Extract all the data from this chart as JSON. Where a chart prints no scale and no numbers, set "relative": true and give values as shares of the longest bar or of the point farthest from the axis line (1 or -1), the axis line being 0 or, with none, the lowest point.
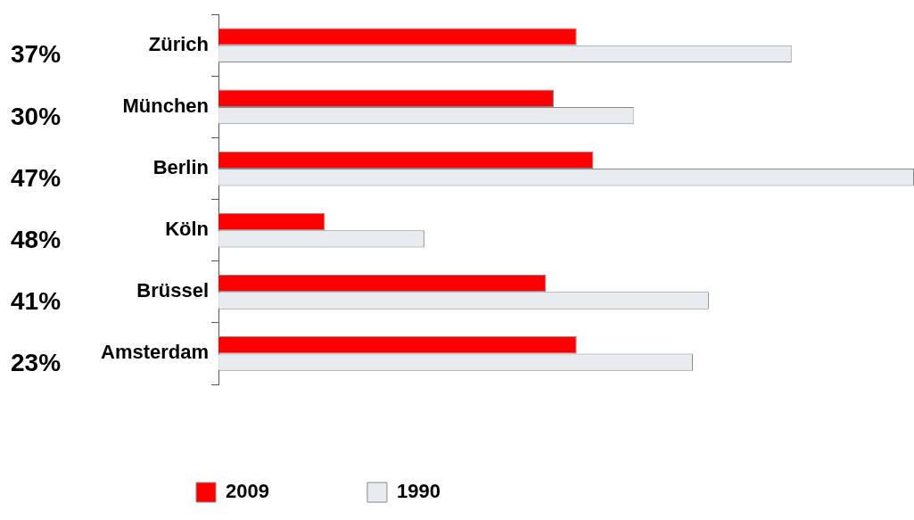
{
  "chart_data": {
    "type": "bar",
    "orientation": "horizontal",
    "relative": true,
    "categories": [
      "Zürich",
      "München",
      "Berlin",
      "Köln",
      "Brüssel",
      "Amsterdam"
    ],
    "series": [
      {
        "name": "2009",
        "color": "#ff0000",
        "values": [
          0.515,
          0.482,
          0.539,
          0.153,
          0.471,
          0.515
        ]
      },
      {
        "name": "1990",
        "color": "#e8ecee",
        "values": [
          0.824,
          0.597,
          1.0,
          0.296,
          0.705,
          0.682
        ]
      }
    ],
    "annotations": [
      "37%",
      "30%",
      "47%",
      "48%",
      "41%",
      "23%"
    ],
    "legend": "bottom"
  }
}
